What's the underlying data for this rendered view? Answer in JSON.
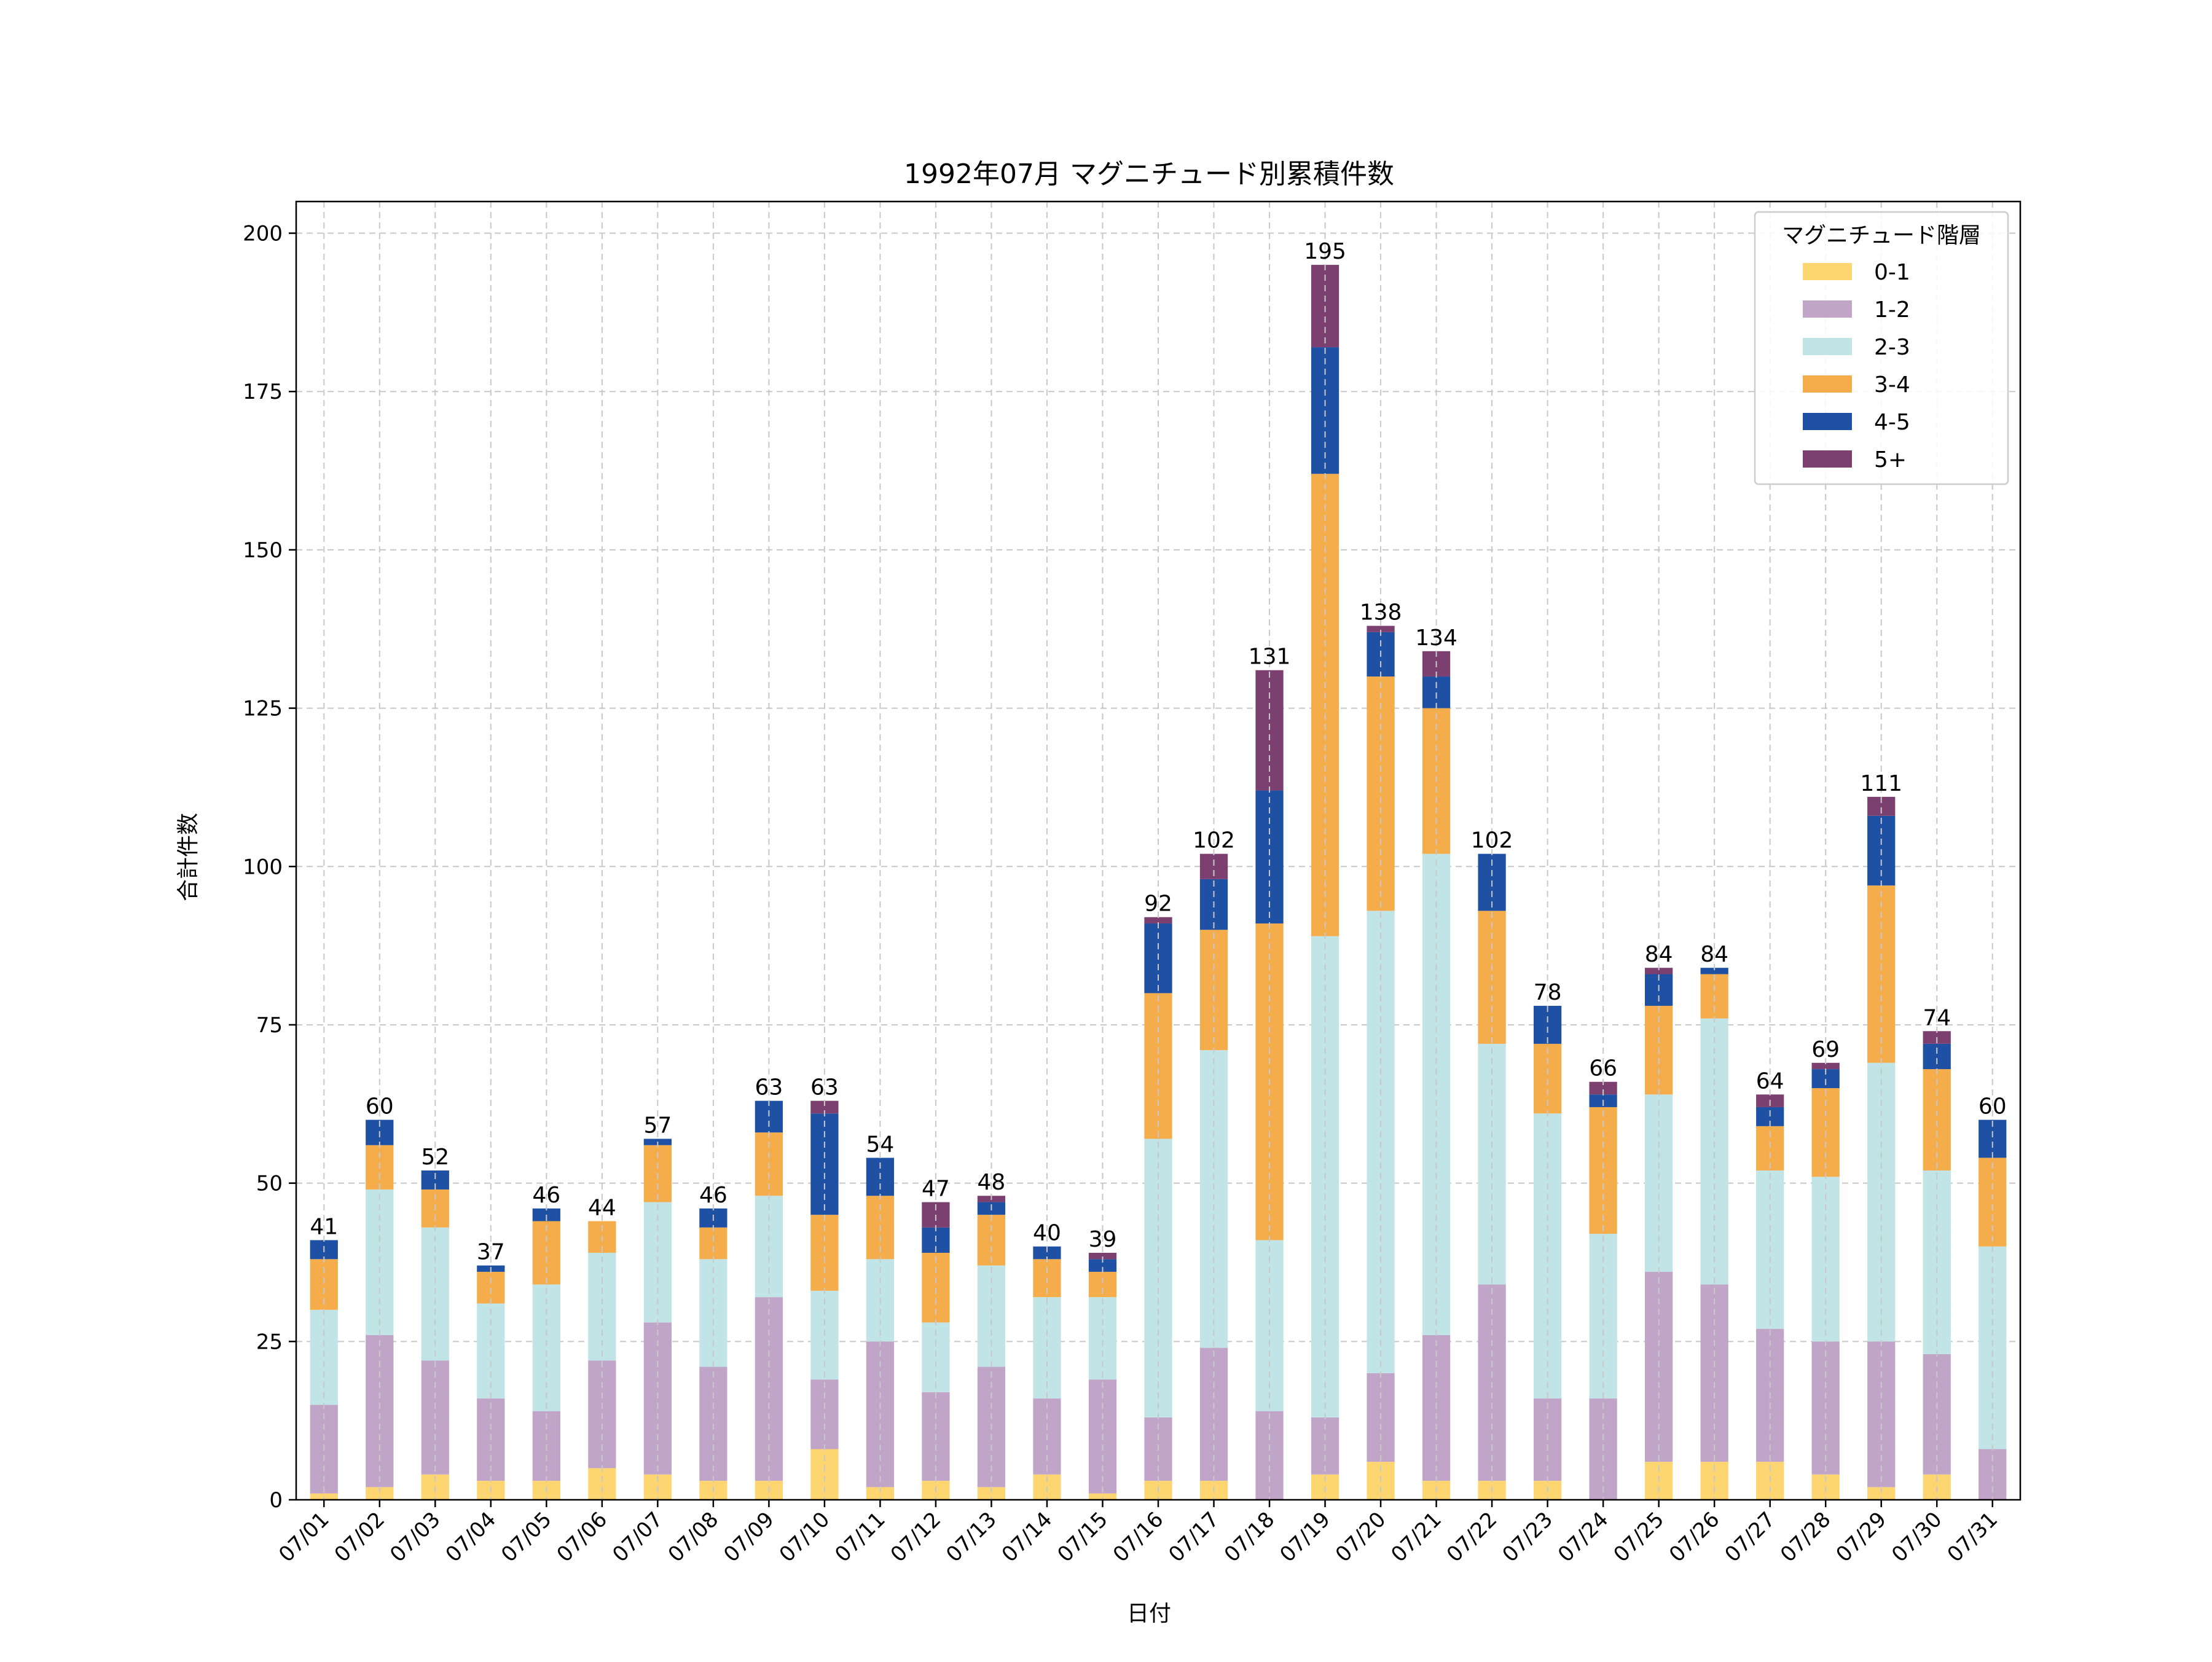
{
  "chart_data": {
    "type": "bar",
    "stacked": true,
    "title": "1992年07月 マグニチュード別累積件数",
    "xlabel": "日付",
    "ylabel": "合計件数",
    "ylim": [
      0,
      205
    ],
    "yticks": [
      0,
      25,
      50,
      75,
      100,
      125,
      150,
      175,
      200
    ],
    "grid": true,
    "legend": {
      "title": "マグニチュード階層",
      "placement": "top-right"
    },
    "categories": [
      "07/01",
      "07/02",
      "07/03",
      "07/04",
      "07/05",
      "07/06",
      "07/07",
      "07/08",
      "07/09",
      "07/10",
      "07/11",
      "07/12",
      "07/13",
      "07/14",
      "07/15",
      "07/16",
      "07/17",
      "07/18",
      "07/19",
      "07/20",
      "07/21",
      "07/22",
      "07/23",
      "07/24",
      "07/25",
      "07/26",
      "07/27",
      "07/28",
      "07/29",
      "07/30",
      "07/31"
    ],
    "series": [
      {
        "name": "0-1",
        "color": "#fdd571",
        "values": [
          1,
          2,
          4,
          3,
          3,
          5,
          4,
          3,
          3,
          8,
          2,
          3,
          2,
          4,
          1,
          3,
          3,
          0,
          4,
          6,
          3,
          3,
          3,
          0,
          6,
          6,
          6,
          4,
          2,
          4,
          0
        ]
      },
      {
        "name": "1-2",
        "color": "#c1a5c9",
        "values": [
          14,
          24,
          18,
          13,
          11,
          17,
          24,
          18,
          29,
          11,
          23,
          14,
          19,
          12,
          18,
          10,
          21,
          14,
          9,
          14,
          23,
          31,
          13,
          16,
          30,
          28,
          21,
          21,
          23,
          19,
          8
        ]
      },
      {
        "name": "2-3",
        "color": "#c1e4e7",
        "values": [
          15,
          23,
          21,
          15,
          20,
          17,
          19,
          17,
          16,
          14,
          13,
          11,
          16,
          16,
          13,
          44,
          47,
          27,
          76,
          73,
          76,
          38,
          45,
          26,
          28,
          42,
          25,
          26,
          44,
          29,
          32
        ]
      },
      {
        "name": "3-4",
        "color": "#f5ad4c",
        "values": [
          8,
          7,
          6,
          5,
          10,
          5,
          9,
          5,
          10,
          12,
          10,
          11,
          8,
          6,
          4,
          23,
          19,
          50,
          73,
          37,
          23,
          21,
          11,
          20,
          14,
          7,
          7,
          14,
          28,
          16,
          14
        ]
      },
      {
        "name": "4-5",
        "color": "#1e50a3",
        "values": [
          3,
          4,
          3,
          1,
          2,
          0,
          1,
          3,
          5,
          16,
          6,
          4,
          2,
          2,
          2,
          11,
          8,
          21,
          20,
          7,
          5,
          9,
          6,
          2,
          5,
          1,
          3,
          3,
          11,
          4,
          6
        ]
      },
      {
        "name": "5+",
        "color": "#7c4070",
        "values": [
          0,
          0,
          0,
          0,
          0,
          0,
          0,
          0,
          0,
          2,
          0,
          4,
          1,
          0,
          1,
          1,
          4,
          19,
          13,
          1,
          4,
          0,
          0,
          2,
          1,
          0,
          2,
          1,
          3,
          2,
          0
        ]
      }
    ],
    "totals": [
      41,
      60,
      52,
      37,
      46,
      44,
      57,
      46,
      63,
      63,
      54,
      47,
      48,
      40,
      39,
      92,
      102,
      131,
      195,
      138,
      134,
      102,
      78,
      66,
      84,
      84,
      64,
      69,
      111,
      74,
      60
    ]
  }
}
